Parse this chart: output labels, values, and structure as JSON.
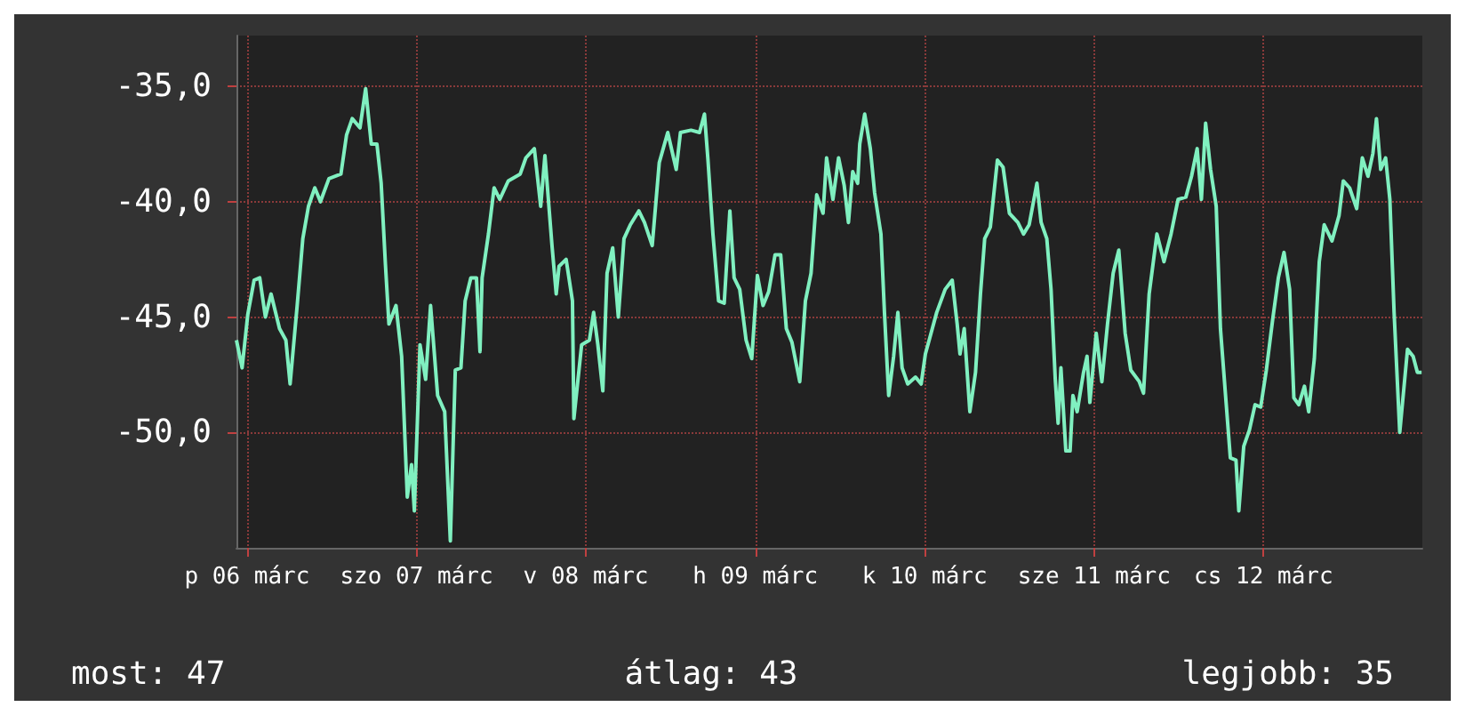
{
  "chart_data": {
    "type": "line",
    "color": "#80f0c0",
    "x": [
      "--03-06T10:30",
      "--03-06T11:18",
      "--03-06T12:06",
      "--03-06T13:00",
      "--03-06T13:48",
      "--03-06T14:36",
      "--03-06T15:24",
      "--03-06T16:36",
      "--03-06T17:30",
      "--03-06T18:06",
      "--03-06T19:06",
      "--03-06T19:54",
      "--03-06T20:42",
      "--03-06T21:36",
      "--03-06T22:24",
      "--03-06T23:36",
      "--03-07T01:18",
      "--03-07T02:06",
      "--03-07T02:54",
      "--03-07T04:00",
      "--03-07T04:48",
      "--03-07T05:36",
      "--03-07T06:24",
      "--03-07T07:00",
      "--03-07T07:36",
      "--03-07T08:06",
      "--03-07T09:06",
      "--03-07T09:54",
      "--03-07T10:42",
      "--03-07T11:18",
      "--03-07T11:42",
      "--03-07T12:30",
      "--03-07T13:18",
      "--03-07T14:00",
      "--03-07T15:00",
      "--03-07T16:00",
      "--03-07T16:48",
      "--03-07T17:30",
      "--03-07T18:18",
      "--03-07T18:54",
      "--03-07T19:42",
      "--03-07T20:30",
      "--03-07T21:00",
      "--03-07T21:18",
      "--03-07T22:12",
      "--03-07T23:00",
      "--03-07T23:48",
      "--03-08T01:00",
      "--03-08T02:42",
      "--03-08T03:30",
      "--03-08T04:42",
      "--03-08T05:36",
      "--03-08T06:12",
      "--03-08T07:12",
      "--03-08T07:48",
      "--03-08T08:12",
      "--03-08T09:12",
      "--03-08T10:06",
      "--03-08T10:18",
      "--03-08T11:24",
      "--03-08T12:30",
      "--03-08T13:06",
      "--03-08T13:42",
      "--03-08T14:24",
      "--03-08T15:00",
      "--03-08T15:48",
      "--03-08T16:36",
      "--03-08T17:24",
      "--03-08T18:18",
      "--03-08T19:30",
      "--03-08T20:18",
      "--03-08T21:24",
      "--03-08T22:24",
      "--03-08T23:36",
      "--03-09T00:48",
      "--03-09T01:24",
      "--03-09T02:54",
      "--03-09T04:06",
      "--03-09T04:48",
      "--03-09T05:18",
      "--03-09T06:00",
      "--03-09T06:48",
      "--03-09T07:36",
      "--03-09T08:24",
      "--03-09T09:00",
      "--03-09T09:48",
      "--03-09T10:42",
      "--03-09T11:30",
      "--03-09T12:18",
      "--03-09T13:06",
      "--03-09T13:54",
      "--03-09T14:48",
      "--03-09T15:36",
      "--03-09T16:24",
      "--03-09T17:12",
      "--03-09T18:18",
      "--03-09T19:06",
      "--03-09T19:54",
      "--03-09T20:42",
      "--03-09T21:36",
      "--03-09T22:06",
      "--03-09T23:00",
      "--03-09T23:48",
      "--03-10T00:36",
      "--03-10T01:12",
      "--03-10T01:48",
      "--03-10T02:30",
      "--03-10T02:48",
      "--03-10T03:30",
      "--03-10T04:18",
      "--03-10T04:54",
      "--03-10T05:48",
      "--03-10T06:18",
      "--03-10T06:54",
      "--03-10T07:36",
      "--03-10T08:12",
      "--03-10T08:48",
      "--03-10T09:36",
      "--03-10T10:42",
      "--03-10T11:30",
      "--03-10T12:06",
      "--03-10T12:54",
      "--03-10T13:42",
      "--03-10T14:54",
      "--03-10T15:54",
      "--03-10T16:36",
      "--03-10T17:00",
      "--03-10T17:36",
      "--03-10T18:24",
      "--03-10T19:12",
      "--03-10T19:54",
      "--03-10T20:30",
      "--03-10T21:18",
      "--03-10T22:18",
      "--03-10T23:06",
      "--03-11T00:00",
      "--03-11T01:12",
      "--03-11T02:00",
      "--03-11T02:48",
      "--03-11T03:54",
      "--03-11T04:30",
      "--03-11T05:18",
      "--03-11T05:54",
      "--03-11T06:30",
      "--03-11T06:54",
      "--03-11T07:18",
      "--03-11T08:00",
      "--03-11T08:36",
      "--03-11T09:00",
      "--03-11T09:36",
      "--03-11T10:30",
      "--03-11T11:00",
      "--03-11T11:24",
      "--03-11T12:18",
      "--03-11T13:06",
      "--03-11T13:54",
      "--03-11T14:42",
      "--03-11T15:30",
      "--03-11T16:24",
      "--03-11T17:12",
      "--03-11T18:24",
      "--03-11T19:00",
      "--03-11T19:48",
      "--03-11T20:54",
      "--03-11T21:54",
      "--03-11T22:54",
      "--03-11T23:54",
      "--03-12T01:00",
      "--03-12T01:48",
      "--03-12T02:36",
      "--03-12T03:12",
      "--03-12T03:48",
      "--03-12T04:30",
      "--03-12T05:18",
      "--03-12T05:54",
      "--03-12T06:42",
      "--03-12T07:18",
      "--03-12T08:06",
      "--03-12T08:30",
      "--03-12T09:12",
      "--03-12T10:00",
      "--03-12T10:48",
      "--03-12T11:36",
      "--03-12T12:24",
      "--03-12T13:18",
      "--03-12T14:06",
      "--03-12T14:54",
      "--03-12T15:42",
      "--03-12T16:18",
      "--03-12T17:00",
      "--03-12T17:48",
      "--03-12T18:24",
      "--03-12T19:12",
      "--03-12T19:54",
      "--03-12T20:36",
      "--03-12T21:42",
      "--03-12T22:42",
      "--03-12T23:18",
      "--03-13T00:12",
      "--03-13T01:12",
      "--03-13T02:00",
      "--03-13T02:48",
      "--03-13T03:30",
      "--03-13T04:00",
      "--03-13T04:36",
      "--03-13T05:18",
      "--03-13T05:54",
      "--03-13T06:30",
      "--03-13T07:18",
      "--03-13T08:24",
      "--03-13T09:12",
      "--03-13T09:48",
      "--03-13T10:24"
    ],
    "values": [
      -46.0,
      -47.2,
      -44.9,
      -43.4,
      -43.3,
      -45.0,
      -44.0,
      -45.5,
      -46.0,
      -47.9,
      -44.5,
      -41.6,
      -40.2,
      -39.4,
      -40.0,
      -39.0,
      -38.8,
      -37.1,
      -36.4,
      -36.8,
      -35.1,
      -37.5,
      -37.5,
      -39.2,
      -42.7,
      -45.3,
      -44.5,
      -46.7,
      -52.8,
      -51.4,
      -53.4,
      -46.2,
      -47.7,
      -44.5,
      -48.4,
      -49.1,
      -54.7,
      -47.3,
      -47.2,
      -44.3,
      -43.3,
      -43.3,
      -46.5,
      -43.3,
      -41.4,
      -39.4,
      -39.9,
      -39.1,
      -38.8,
      -38.1,
      -37.7,
      -40.2,
      -38.0,
      -41.9,
      -44.0,
      -42.8,
      -42.5,
      -44.3,
      -49.4,
      -46.2,
      -46.0,
      -44.8,
      -46.2,
      -48.2,
      -43.1,
      -42.0,
      -45.0,
      -41.6,
      -41.0,
      -40.4,
      -40.9,
      -41.9,
      -38.3,
      -37.0,
      -38.6,
      -37.0,
      -36.9,
      -37.0,
      -36.2,
      -38.2,
      -41.4,
      -44.3,
      -44.4,
      -40.4,
      -43.3,
      -43.8,
      -46.0,
      -46.8,
      -43.2,
      -44.5,
      -43.9,
      -42.3,
      -42.3,
      -45.5,
      -46.1,
      -47.8,
      -44.3,
      -43.1,
      -39.7,
      -40.5,
      -38.1,
      -39.9,
      -38.1,
      -39.3,
      -40.9,
      -38.7,
      -39.2,
      -37.5,
      -36.2,
      -37.7,
      -39.6,
      -41.4,
      -44.8,
      -48.4,
      -46.7,
      -44.8,
      -47.2,
      -47.9,
      -47.6,
      -47.9,
      -46.6,
      -45.7,
      -44.8,
      -43.8,
      -43.4,
      -45.3,
      -46.6,
      -45.5,
      -49.1,
      -47.4,
      -44.0,
      -41.6,
      -41.1,
      -38.2,
      -38.5,
      -40.5,
      -40.9,
      -41.4,
      -41.0,
      -39.2,
      -40.9,
      -41.6,
      -43.8,
      -47.7,
      -49.6,
      -47.2,
      -50.8,
      -50.8,
      -48.4,
      -49.1,
      -47.4,
      -46.7,
      -48.7,
      -45.7,
      -47.8,
      -45.3,
      -43.1,
      -42.1,
      -45.7,
      -47.3,
      -47.8,
      -48.3,
      -44.0,
      -41.4,
      -42.6,
      -41.4,
      -39.9,
      -39.8,
      -38.9,
      -37.7,
      -39.9,
      -36.6,
      -38.6,
      -40.2,
      -45.5,
      -48.7,
      -51.1,
      -51.2,
      -53.4,
      -50.6,
      -49.9,
      -48.8,
      -48.9,
      -47.3,
      -45.1,
      -43.3,
      -42.2,
      -43.8,
      -48.5,
      -48.8,
      -48.0,
      -49.1,
      -46.8,
      -42.6,
      -41.0,
      -41.7,
      -40.6,
      -39.1,
      -39.4,
      -40.3,
      -38.1,
      -38.9,
      -37.9,
      -36.4,
      -38.6,
      -38.1,
      -39.9,
      -44.8,
      -50.0,
      -46.4,
      -46.7,
      -47.4,
      -47.4
    ],
    "xlim": [
      "--03-06T10:30",
      "--03-13T10:30"
    ],
    "xticks": [
      {
        "value": "--03-06T12:00",
        "label": "p 06 márc"
      },
      {
        "value": "--03-07T12:00",
        "label": "szo 07 márc"
      },
      {
        "value": "--03-08T12:00",
        "label": "v 08 márc"
      },
      {
        "value": "--03-09T12:00",
        "label": "h 09 márc"
      },
      {
        "value": "--03-10T12:00",
        "label": "k 10 márc"
      },
      {
        "value": "--03-11T12:00",
        "label": "sze 11 márc"
      },
      {
        "value": "--03-12T12:00",
        "label": "cs 12 márc"
      }
    ],
    "ylim": [
      -55,
      -32.8
    ],
    "yticks": [
      {
        "value": -50,
        "label": "-50,0"
      },
      {
        "value": -45,
        "label": "-45,0"
      },
      {
        "value": -40,
        "label": "-40,0"
      },
      {
        "value": -35,
        "label": "-35,0"
      }
    ],
    "grid": true,
    "annotations": [
      "most: 47",
      "átlag: 43",
      "legjobb: 35"
    ]
  }
}
